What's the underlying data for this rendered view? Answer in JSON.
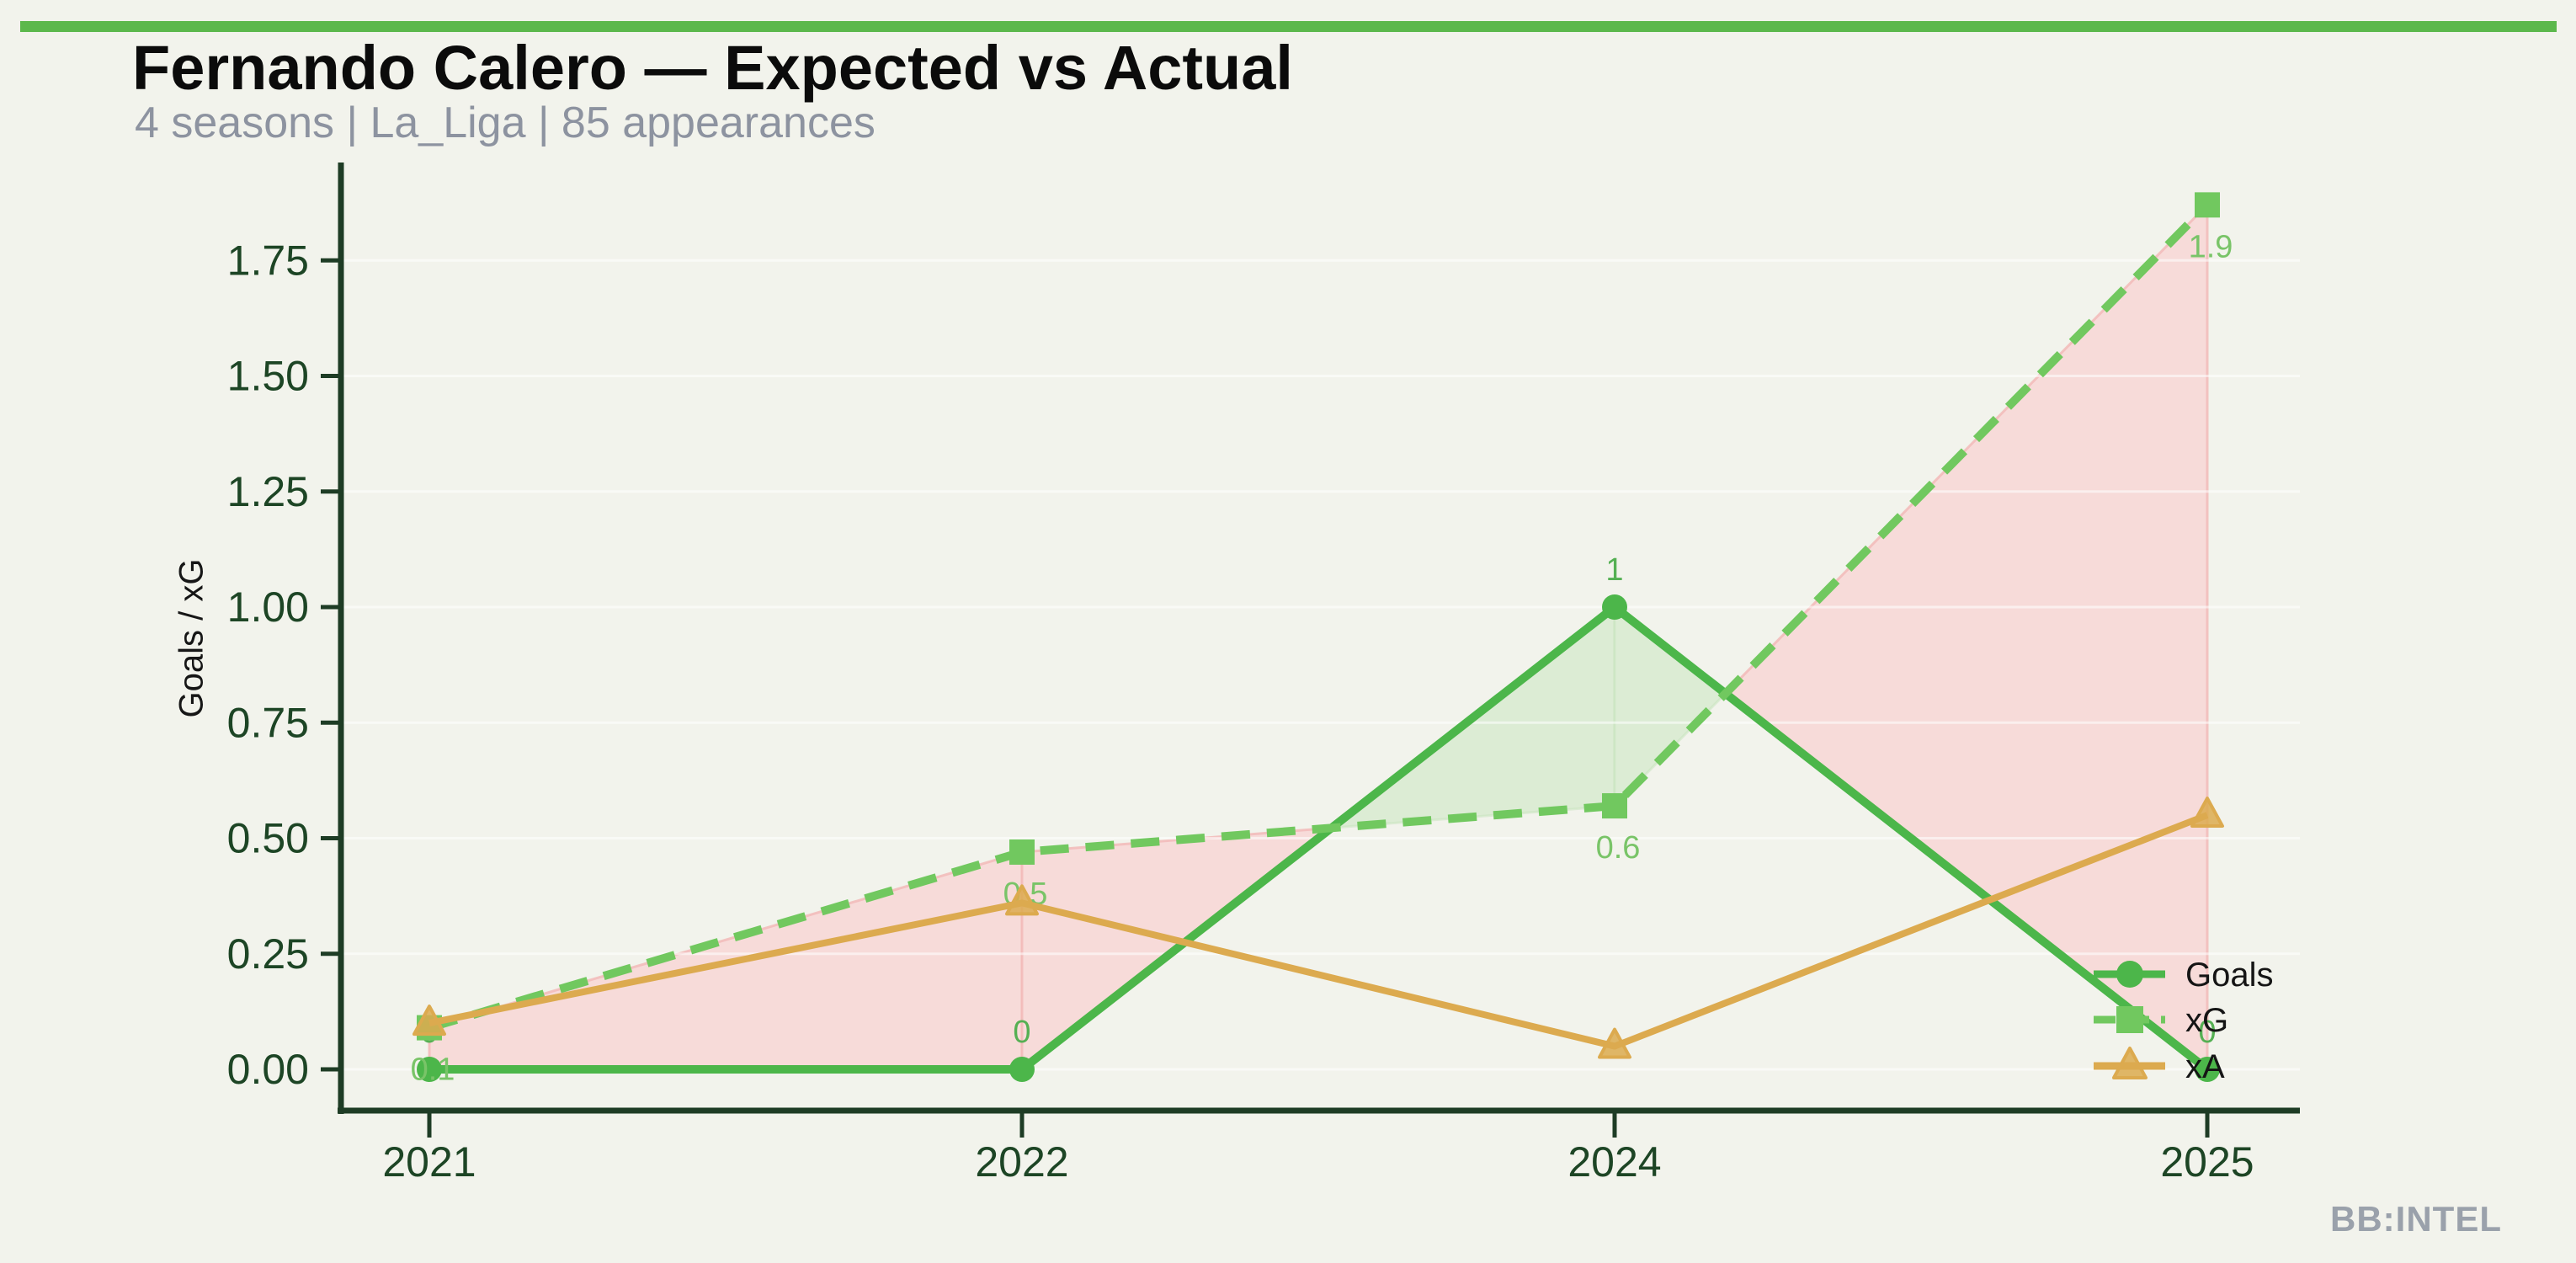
{
  "page": {
    "background_color": "#f2f3ec",
    "accent_bar_color": "#5cb84c"
  },
  "header": {
    "title": "Fernando Calero — Expected vs Actual",
    "subtitle": "4 seasons | La_Liga | 85 appearances"
  },
  "watermark": "BB:INTEL",
  "chart_data": {
    "type": "line",
    "title": "Fernando Calero — Expected vs Actual",
    "subtitle": "4 seasons | La_Liga | 85 appearances",
    "categories": [
      "2021",
      "2022",
      "2024",
      "2025"
    ],
    "series": [
      {
        "name": "Goals",
        "values": [
          0,
          0,
          1,
          0
        ],
        "color": "#4cb64a",
        "marker": "circle",
        "line_style": "solid",
        "line_width": 10,
        "labels": [
          "0",
          "0",
          "1",
          "0"
        ],
        "label_color": "#55b053",
        "label_position": "above"
      },
      {
        "name": "xG",
        "values": [
          0.09,
          0.47,
          0.57,
          1.87
        ],
        "color": "#71c85f",
        "marker": "square",
        "line_style": "dashed",
        "line_width": 10,
        "labels": [
          "0.1",
          "0.5",
          "0.6",
          "1.9"
        ],
        "label_color": "#79c468",
        "label_position": "below"
      },
      {
        "name": "xA",
        "values": [
          0.1,
          0.36,
          0.05,
          0.55
        ],
        "color": "#dcaa4f",
        "marker": "triangle",
        "line_style": "solid",
        "line_width": 8,
        "labels": [],
        "label_color": "#c89a40",
        "label_position": "none"
      }
    ],
    "xlabel": "",
    "ylabel": "Goals / xG",
    "ylim": [
      0,
      1.96
    ],
    "yticks": [
      0,
      0.25,
      0.5,
      0.75,
      1.0,
      1.25,
      1.5,
      1.75
    ],
    "ytick_labels": [
      "0.00",
      "0.25",
      "0.50",
      "0.75",
      "1.00",
      "1.25",
      "1.50",
      "1.75"
    ],
    "grid": "faint horizontal gridlines at each y tick",
    "legend_position": "inside lower right",
    "fills": {
      "description": "shaded area between Goals and xG lines",
      "xg_above_goals_color": "#f7dbd9",
      "goals_above_xg_color": "#dcecd4"
    },
    "axis": {
      "spine_color": "#1e3c25",
      "tick_label_color": "#1d4525",
      "legend_text_color": "#151515"
    }
  }
}
